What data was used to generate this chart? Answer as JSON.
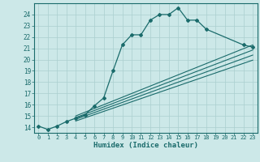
{
  "xlabel": "Humidex (Indice chaleur)",
  "xlim": [
    -0.5,
    23.5
  ],
  "ylim": [
    13.5,
    25.0
  ],
  "yticks": [
    14,
    15,
    16,
    17,
    18,
    19,
    20,
    21,
    22,
    23,
    24
  ],
  "xticks": [
    0,
    1,
    2,
    3,
    4,
    5,
    6,
    7,
    8,
    9,
    10,
    11,
    12,
    13,
    14,
    15,
    16,
    17,
    18,
    19,
    20,
    21,
    22,
    23
  ],
  "bg_color": "#cce8e8",
  "line_color": "#1a6b6b",
  "grid_color": "#aacfcf",
  "main_line_x": [
    0,
    1,
    2,
    3,
    4,
    5,
    6,
    7,
    8,
    9,
    10,
    11,
    12,
    13,
    14,
    15,
    16,
    17,
    18,
    22,
    23
  ],
  "main_line_y": [
    14.1,
    13.8,
    14.1,
    14.5,
    14.8,
    15.1,
    15.9,
    16.6,
    19.0,
    21.3,
    22.2,
    22.2,
    23.5,
    24.0,
    24.0,
    24.6,
    23.5,
    23.5,
    22.7,
    21.3,
    21.1
  ],
  "diag_lines": [
    {
      "x": [
        4,
        23
      ],
      "y": [
        15.0,
        21.3
      ]
    },
    {
      "x": [
        4,
        23
      ],
      "y": [
        14.85,
        20.85
      ]
    },
    {
      "x": [
        4,
        23
      ],
      "y": [
        14.7,
        20.4
      ]
    },
    {
      "x": [
        4,
        23
      ],
      "y": [
        14.55,
        19.95
      ]
    }
  ]
}
